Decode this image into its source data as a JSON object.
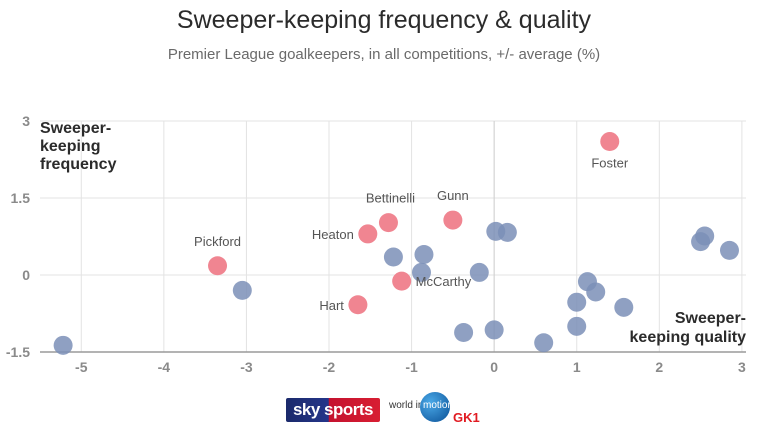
{
  "chart_data": {
    "type": "scatter",
    "title": "Sweeper-keeping frequency & quality",
    "subtitle": "Premier League goalkeepers, in all competitions, +/- average (%)",
    "xlabel": "Sweeper-keeping quality",
    "ylabel": "Sweeper-keeping frequency",
    "xlim": [
      -5.5,
      3.05
    ],
    "ylim": [
      -1.5,
      3
    ],
    "x_ticks": [
      "-5",
      "-4",
      "-3",
      "-2",
      "-1",
      "0",
      "1",
      "2",
      "3"
    ],
    "x_tick_values": [
      -5,
      -4,
      -3,
      -2,
      -1,
      0,
      1,
      2,
      3
    ],
    "y_ticks": [
      "-1.5",
      "0",
      "1.5",
      "3"
    ],
    "y_tick_values": [
      -1.5,
      0,
      1.5,
      3
    ],
    "grid": true,
    "highlight_color": "#f08591",
    "other_color": "#7b8fb7",
    "labeled_points": [
      {
        "label": "Foster",
        "x": 1.4,
        "y": 2.6
      },
      {
        "label": "Gunn",
        "x": -0.5,
        "y": 1.07
      },
      {
        "label": "Bettinelli",
        "x": -1.28,
        "y": 1.02
      },
      {
        "label": "Heaton",
        "x": -1.53,
        "y": 0.8
      },
      {
        "label": "Pickford",
        "x": -3.35,
        "y": 0.18
      },
      {
        "label": "McCarthy",
        "x": -1.12,
        "y": -0.12
      },
      {
        "label": "Hart",
        "x": -1.65,
        "y": -0.58
      }
    ],
    "other_points": [
      {
        "x": -5.22,
        "y": -1.37
      },
      {
        "x": -3.05,
        "y": -0.3
      },
      {
        "x": -1.22,
        "y": 0.35
      },
      {
        "x": -0.85,
        "y": 0.4
      },
      {
        "x": -0.88,
        "y": 0.05
      },
      {
        "x": -0.18,
        "y": 0.05
      },
      {
        "x": 0.02,
        "y": 0.85
      },
      {
        "x": 0.16,
        "y": 0.83
      },
      {
        "x": -0.37,
        "y": -1.12
      },
      {
        "x": 0.0,
        "y": -1.07
      },
      {
        "x": 0.6,
        "y": -1.32
      },
      {
        "x": 1.0,
        "y": -0.53
      },
      {
        "x": 1.0,
        "y": -1.0
      },
      {
        "x": 1.13,
        "y": -0.13
      },
      {
        "x": 1.23,
        "y": -0.33
      },
      {
        "x": 1.57,
        "y": -0.63
      },
      {
        "x": 2.5,
        "y": 0.65
      },
      {
        "x": 2.55,
        "y": 0.76
      },
      {
        "x": 2.85,
        "y": 0.48
      }
    ]
  },
  "footer": {
    "brand": "sky sports",
    "partner_prefix": "world in",
    "partner_word": "motion",
    "partner_badge": "GK1"
  }
}
